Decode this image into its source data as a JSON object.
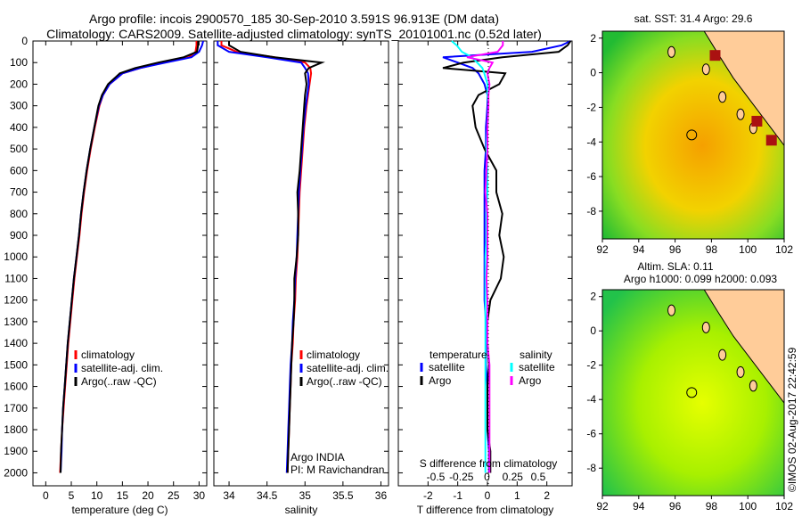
{
  "title_line1": "Argo profile: incois 2900570_185 30-Sep-2010 3.591S 96.913E (DM data)",
  "title_line2": "Climatology: CARS2009. Satellite-adjusted climatology: synTS_20101001.nc (0.52d later)",
  "colors": {
    "climatology": "#ff0000",
    "satellite": "#0000ff",
    "argo": "#000000",
    "s_satellite": "#00ffff",
    "s_argo": "#ff00ff",
    "land": "#ffcc99"
  },
  "chart_data": [
    {
      "type": "line",
      "name": "temperature",
      "xlabel": "temperature (deg C)",
      "xlim": [
        -2.5,
        31.5
      ],
      "ylim": [
        2060,
        0
      ],
      "yticks": [
        0,
        100,
        200,
        300,
        400,
        500,
        600,
        700,
        800,
        900,
        1000,
        1100,
        1200,
        1300,
        1400,
        1500,
        1600,
        1700,
        1800,
        1900,
        2000
      ],
      "xticks": [
        0,
        5,
        10,
        15,
        20,
        25,
        30
      ],
      "depth": [
        0,
        20,
        50,
        75,
        100,
        125,
        150,
        200,
        250,
        300,
        400,
        500,
        600,
        700,
        800,
        900,
        1000,
        1100,
        1200,
        1300,
        1400,
        1500,
        1600,
        1700,
        1800,
        1900,
        2000
      ],
      "legend": [
        "climatology",
        "satellite-adj. clim.",
        "Argo(..raw -QC)"
      ],
      "series": [
        {
          "name": "climatology",
          "color": "#ff0000",
          "values": [
            29.5,
            29.5,
            29.3,
            28,
            23,
            18.5,
            15,
            12.5,
            11.2,
            10.5,
            9.6,
            8.8,
            8.1,
            7.5,
            7,
            6.6,
            6.1,
            5.6,
            5.2,
            4.8,
            4.4,
            4.1,
            3.8,
            3.5,
            3.2,
            3.0,
            2.8
          ]
        },
        {
          "name": "satellite-adj. clim.",
          "color": "#0000ff",
          "values": [
            30.8,
            30.6,
            30,
            28.5,
            23.5,
            18.5,
            15,
            12.5,
            11.2,
            10.4,
            9.5,
            8.7,
            8.0,
            7.4,
            6.9,
            6.5,
            6.0,
            5.5,
            5.1,
            4.7,
            4.3,
            4.0,
            3.7,
            3.4,
            3.2,
            3.1,
            2.9
          ]
        },
        {
          "name": "Argo(..raw -QC)",
          "color": "#000000",
          "values": [
            29.8,
            29.8,
            29.6,
            27,
            22,
            17.5,
            14.5,
            12.2,
            11,
            10.3,
            9.5,
            8.7,
            8,
            7.4,
            6.9,
            6.5,
            6,
            5.5,
            5.1,
            4.7,
            4.3,
            4,
            3.7,
            3.4,
            3.2,
            3.0,
            2.9
          ]
        }
      ]
    },
    {
      "type": "line",
      "name": "salinity",
      "xlabel": "salinity",
      "xlim": [
        33.8,
        36.1
      ],
      "ylim": [
        2060,
        0
      ],
      "xticks": [
        34,
        34.5,
        35,
        35.5,
        36
      ],
      "legend": [
        "climatology",
        "satellite-adj. clim.",
        "Argo(..raw -QC)"
      ],
      "annotation": [
        "Argo INDIA",
        "PI: M Ravichandran"
      ],
      "series": [
        {
          "name": "climatology",
          "color": "#ff0000",
          "values": [
            33.9,
            33.9,
            34.1,
            34.6,
            35.0,
            35.07,
            35.08,
            35.06,
            35.04,
            35.02,
            34.99,
            34.97,
            34.95,
            34.93,
            34.92,
            34.91,
            34.9,
            34.88,
            34.87,
            34.85,
            34.84,
            34.82,
            34.81,
            34.8,
            34.79,
            34.78,
            34.77
          ]
        },
        {
          "name": "satellite-adj. clim.",
          "color": "#0000ff",
          "values": [
            33.85,
            33.85,
            34.0,
            34.5,
            34.95,
            35.0,
            35.04,
            35.05,
            35.03,
            35.01,
            34.98,
            34.96,
            34.94,
            34.92,
            34.91,
            34.9,
            34.89,
            34.87,
            34.86,
            34.84,
            34.83,
            34.81,
            34.8,
            34.79,
            34.78,
            34.77,
            34.76
          ]
        },
        {
          "name": "Argo(..raw -QC)",
          "color": "#000000",
          "values": [
            34.0,
            34.0,
            34.15,
            34.6,
            35.22,
            35.05,
            35.0,
            35.02,
            35.0,
            34.99,
            34.97,
            34.95,
            34.93,
            34.9,
            34.91,
            34.91,
            34.89,
            34.86,
            34.86,
            34.85,
            34.83,
            34.82,
            34.81,
            34.8,
            34.79,
            34.78,
            34.77
          ]
        }
      ]
    },
    {
      "type": "line",
      "name": "differences",
      "xlabel": "T difference from climatology",
      "xlabel2": "S difference from climatology",
      "xlim": [
        -3,
        2.85
      ],
      "ylim": [
        2060,
        0
      ],
      "xticks": [
        -2,
        -1,
        0,
        1,
        2
      ],
      "sticks": [
        -0.5,
        -0.25,
        0,
        0.25,
        0.5
      ],
      "legend_t": {
        "header": "temperature",
        "items": [
          "satellite",
          "Argo"
        ]
      },
      "legend_s": {
        "header": "salinity",
        "items": [
          "satellite",
          "Argo"
        ]
      },
      "series": [
        {
          "name": "T satellite",
          "color": "#0000ff",
          "unit": "T",
          "values": [
            2.8,
            2.5,
            1.5,
            -1.5,
            -1,
            -0.5,
            -0.3,
            -0.1,
            0,
            0,
            -0.05,
            -0.05,
            -0.1,
            -0.1,
            -0.1,
            -0.1,
            -0.1,
            -0.1,
            -0.1,
            -0.05,
            -0.05,
            -0.05,
            0,
            0,
            0,
            0.05,
            0.05
          ]
        },
        {
          "name": "T Argo",
          "color": "#000000",
          "unit": "T",
          "values": [
            2.8,
            2.7,
            2.4,
            0.5,
            -0.8,
            -1.5,
            0.6,
            0.4,
            -0.3,
            -0.5,
            -0.4,
            -0.1,
            0.3,
            0.3,
            0.5,
            0.4,
            0.55,
            0.45,
            0.1,
            0,
            0,
            0.05,
            0,
            0,
            0,
            0.1,
            0.1
          ]
        },
        {
          "name": "S satellite",
          "color": "#00ffff",
          "unit": "S",
          "values": [
            -0.35,
            -0.3,
            -0.25,
            -0.15,
            -0.1,
            -0.05,
            -0.03,
            0,
            0,
            0.01,
            0,
            -0.01,
            0,
            0,
            -0.01,
            -0.01,
            -0.02,
            -0.02,
            -0.02,
            -0.02,
            -0.02,
            -0.02,
            -0.02,
            -0.02,
            -0.02,
            -0.02,
            -0.02
          ]
        },
        {
          "name": "S Argo",
          "color": "#ff00ff",
          "unit": "S",
          "values": [
            0.15,
            0.15,
            0.1,
            -0.2,
            0.05,
            0.02,
            0,
            0.02,
            0.01,
            0.01,
            0,
            0,
            -0.01,
            -0.02,
            0,
            0,
            0,
            -0.01,
            0,
            0,
            0,
            0.02,
            0.02,
            0.02,
            0.02,
            0.02,
            0.02
          ]
        }
      ]
    }
  ],
  "maps": [
    {
      "title": "sat. SST: 31.4  Argo: 29.6",
      "xticks": [
        92,
        94,
        96,
        98,
        100,
        102
      ],
      "yticks": [
        2,
        0,
        -2,
        -4,
        -6,
        -8
      ],
      "float_lon": 96.913,
      "float_lat": -3.591
    },
    {
      "title": "Altim. SLA: 0.11",
      "subtitle": "Argo h1000: 0.099 h2000: 0.093",
      "xticks": [
        92,
        94,
        96,
        98,
        100,
        102
      ],
      "yticks": [
        2,
        0,
        -2,
        -4,
        -6,
        -8
      ],
      "float_lon": 96.913,
      "float_lat": -3.591
    }
  ],
  "stamp": "©IMOS 02-Aug-2017 22:42:59"
}
